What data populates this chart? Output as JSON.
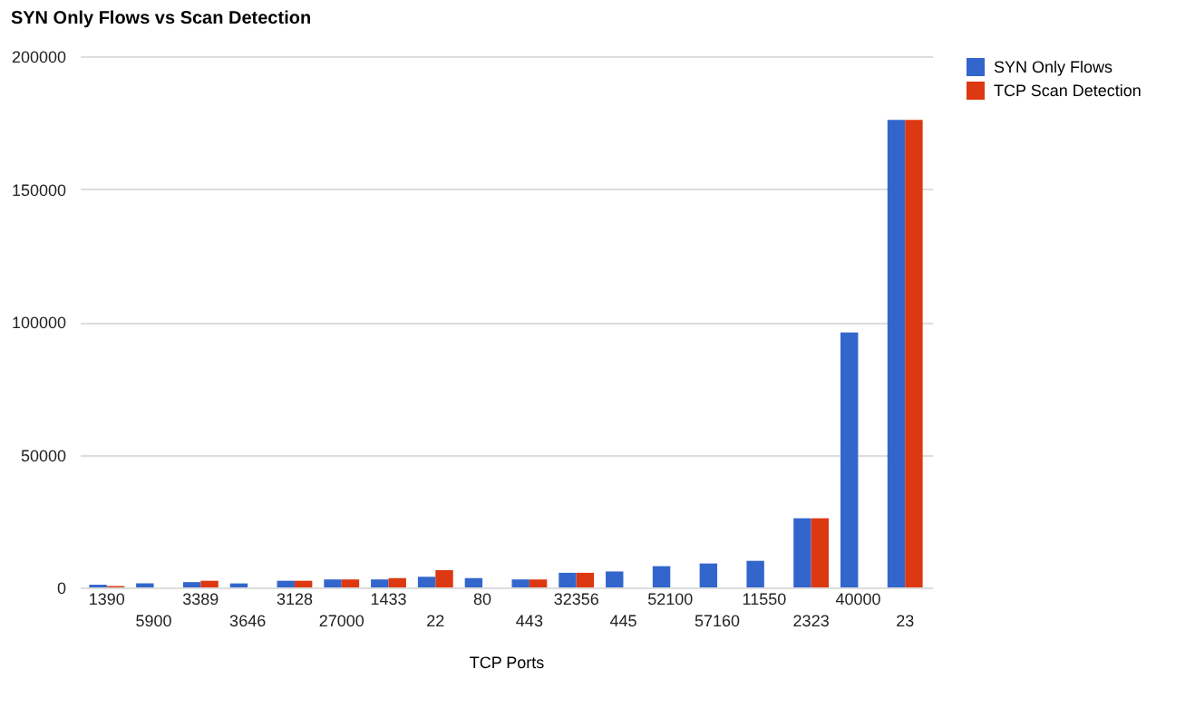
{
  "chart_data": {
    "type": "bar",
    "title": "SYN Only Flows vs Scan Detection",
    "xlabel": "TCP Ports",
    "categories": [
      "1390",
      "5900",
      "3389",
      "3646",
      "3128",
      "27000",
      "1433",
      "22",
      "80",
      "443",
      "32356",
      "445",
      "52100",
      "57160",
      "11550",
      "2323",
      "40000",
      "23"
    ],
    "series": [
      {
        "name": "SYN Only Flows",
        "color": "#3366cc",
        "values": [
          1000,
          1500,
          2000,
          1500,
          2500,
          3000,
          3000,
          4000,
          3500,
          3000,
          5500,
          6000,
          8000,
          9000,
          10000,
          26000,
          96000,
          176000
        ]
      },
      {
        "name": "TCP Scan Detection",
        "color": "#dc3912",
        "values": [
          500,
          0,
          2500,
          0,
          2500,
          3000,
          3500,
          6500,
          0,
          3000,
          5500,
          0,
          0,
          0,
          0,
          26000,
          0,
          176000
        ]
      }
    ],
    "ylim": [
      0,
      200000
    ],
    "yticks": [
      0,
      50000,
      100000,
      150000,
      200000
    ],
    "grid": "y",
    "legend": "top right"
  }
}
